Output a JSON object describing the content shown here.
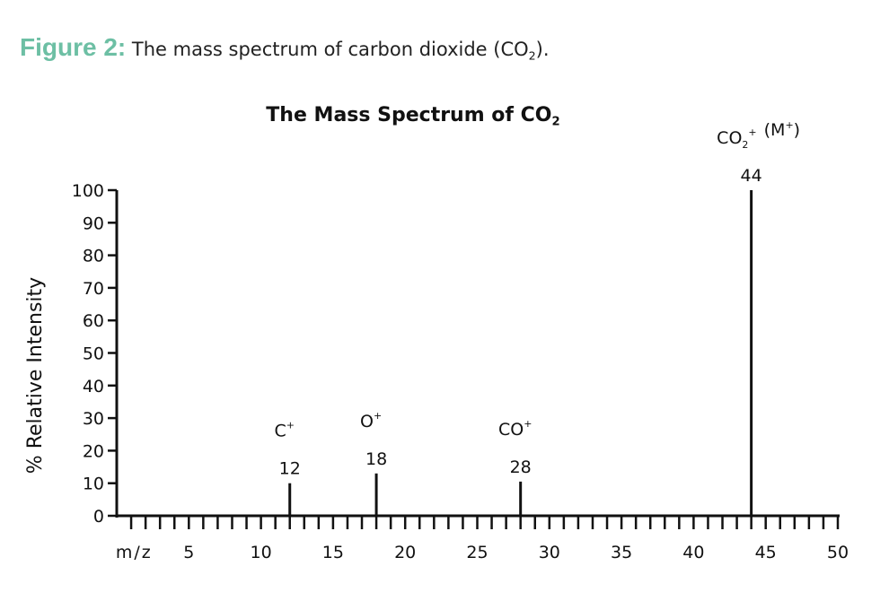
{
  "figure_caption": {
    "lead": "Figure 2:",
    "text": "The mass spectrum of carbon dioxide (CO",
    "subscript": "2",
    "tail": ")."
  },
  "chart_data": {
    "type": "bar",
    "title": "The Mass Spectrum of CO",
    "title_subscript": "2",
    "xlabel": "m/z",
    "ylabel": "% Relative Intensity",
    "xlim": [
      0,
      50
    ],
    "ylim": [
      0,
      100
    ],
    "x_ticks": [
      5,
      10,
      15,
      20,
      25,
      30,
      35,
      40,
      45,
      50
    ],
    "y_ticks": [
      0,
      10,
      20,
      30,
      40,
      50,
      60,
      70,
      80,
      90,
      100
    ],
    "minor_x_step": 1,
    "grid": false,
    "peaks": [
      {
        "x": 12,
        "y": 10,
        "value_label": "12",
        "ion": "C",
        "ion_sup": "+",
        "ion_sub": ""
      },
      {
        "x": 18,
        "y": 13,
        "value_label": "18",
        "ion": "O",
        "ion_sup": "+",
        "ion_sub": ""
      },
      {
        "x": 28,
        "y": 10.5,
        "value_label": "28",
        "ion": "CO",
        "ion_sup": "+",
        "ion_sub": ""
      },
      {
        "x": 44,
        "y": 100,
        "value_label": "44",
        "ion": "CO",
        "ion_sup": "+",
        "ion_sub": "2",
        "ion_suffix": "(M+)"
      }
    ]
  }
}
